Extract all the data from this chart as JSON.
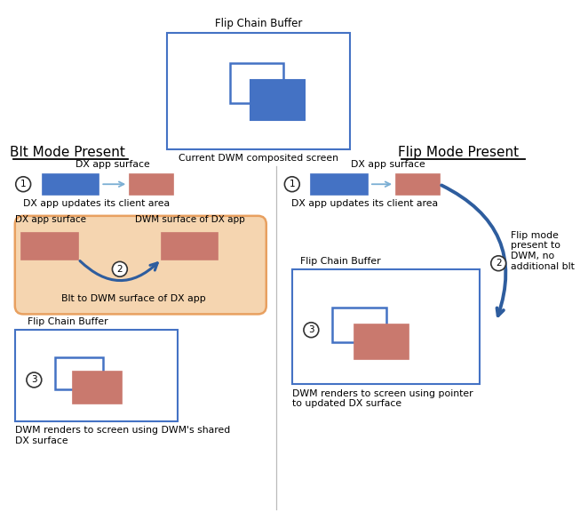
{
  "bg_color": "#ffffff",
  "blue_dark": "#2E5D9E",
  "blue_light": "#4472C4",
  "pink": "#C9796E",
  "orange_fill": "#F5D5B0",
  "orange_border": "#E8A060",
  "title_top": "Flip Chain Buffer",
  "title_blt": "Blt Mode Present",
  "title_flip": "Flip Mode Present",
  "label_current_dwm": "Current DWM composited screen",
  "label_dx_app_surface": "DX app surface",
  "label_dx_updates": "DX app updates its client area",
  "label_blt_to_dwm": "Blt to DWM surface of DX app",
  "label_dwm_surface": "DWM surface of DX app",
  "label_flip_chain": "Flip Chain Buffer",
  "label_dwm_renders_blt": "DWM renders to screen using DWM's shared\nDX surface",
  "label_flip_mode": "Flip mode\npresent to\nDWM, no\nadditional blt",
  "label_dwm_renders_flip": "DWM renders to screen using pointer\nto updated DX surface"
}
